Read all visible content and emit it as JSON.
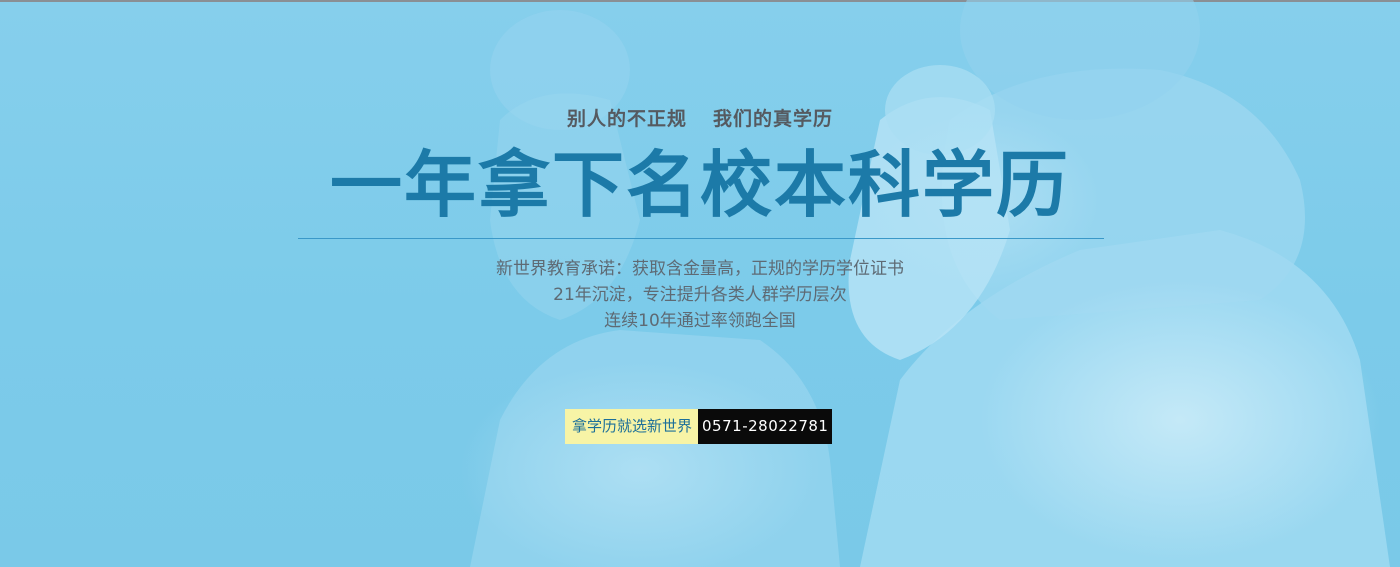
{
  "banner": {
    "tagline_left": "别人的不正规",
    "tagline_right": "我们的真学历",
    "headline": "一年拿下名校本科学历",
    "description": [
      "新世界教育承诺：获取含金量高，正规的学历学位证书",
      "21年沉淀，专注提升各类人群学历层次",
      "连续10年通过率领跑全国"
    ],
    "cta_label": "拿学历就选新世界",
    "phone": "0571-28022781"
  },
  "colors": {
    "background": "#7ecbe9",
    "headline": "#1c7aa8",
    "tagline": "#555a60",
    "cta_label_bg": "#f7f4a6",
    "phone_bg": "#0a0a0a"
  }
}
